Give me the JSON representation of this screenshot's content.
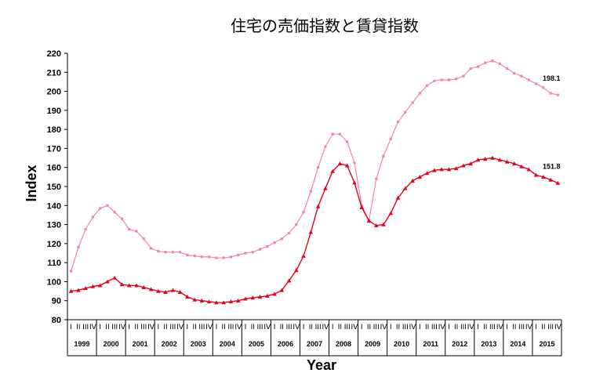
{
  "chart_data": {
    "type": "line",
    "title": "住宅の売価指数と賃貸指数",
    "xlabel": "Year",
    "ylabel": "Index",
    "ylim": [
      80,
      220
    ],
    "yticks": [
      80,
      90,
      100,
      110,
      120,
      130,
      140,
      150,
      160,
      170,
      180,
      190,
      200,
      210,
      220
    ],
    "years": [
      "1999",
      "2000",
      "2001",
      "2002",
      "2003",
      "2004",
      "2005",
      "2006",
      "2007",
      "2008",
      "2009",
      "2010",
      "2011",
      "2012",
      "2013",
      "2014",
      "2015"
    ],
    "quarter_labels": [
      "I",
      "II",
      "III",
      "IV"
    ],
    "grid": false,
    "series": [
      {
        "values": [
          105.5,
          118,
          127.5,
          134,
          138.5,
          140,
          136.5,
          133,
          127.5,
          126.5,
          122.5,
          117.5,
          116,
          115.5,
          115.5,
          115.5,
          114,
          113.5,
          113,
          113,
          112.5,
          112.5,
          113,
          114,
          115,
          115.5,
          117,
          118.5,
          120.5,
          122.5,
          125.5,
          130,
          136.5,
          147.5,
          160,
          171,
          177.5,
          177.5,
          173.5,
          162.5,
          140,
          132,
          154,
          166,
          175,
          184,
          189,
          194,
          199,
          203,
          205.5,
          206,
          206,
          206.5,
          208,
          212,
          213,
          215,
          216,
          214.5,
          212,
          209.5,
          208,
          206,
          204,
          202,
          199,
          198.1
        ],
        "end_label": "198.1",
        "color": "#f0879c"
      },
      {
        "values": [
          95,
          95.5,
          96.5,
          97.5,
          98,
          100,
          102,
          98.5,
          98,
          98,
          97,
          96,
          95,
          94.5,
          95.5,
          94.5,
          92,
          90.5,
          90,
          89.5,
          89,
          89,
          89.5,
          90,
          91,
          91.5,
          92,
          92.5,
          93.5,
          95.5,
          100.5,
          106,
          113.5,
          126,
          139.5,
          149,
          158,
          162,
          161,
          152,
          139,
          132,
          129.5,
          130,
          136,
          144,
          149,
          153,
          155,
          157,
          158.5,
          159,
          159,
          159.5,
          161,
          162,
          164,
          164.5,
          165,
          164,
          163,
          162,
          160.5,
          159,
          156,
          155,
          153.5,
          151.8
        ],
        "end_label": "151.8",
        "color": "#e8001c"
      }
    ]
  }
}
